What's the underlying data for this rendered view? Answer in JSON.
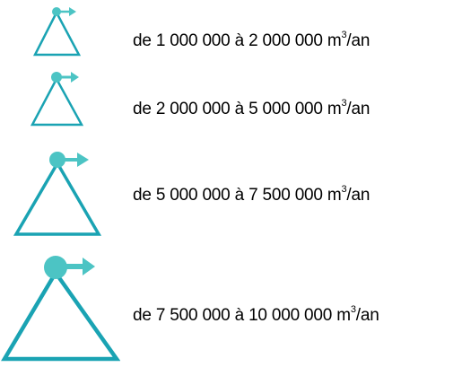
{
  "legend": {
    "icon": "triangle-with-flag-icon",
    "color": "#1aa3b3",
    "items": [
      {
        "prefix": "de 1 000 000 à 2 000 000 m",
        "exponent": "3",
        "suffix": "/an"
      },
      {
        "prefix": "de 2 000 000 à 5 000 000 m",
        "exponent": "3",
        "suffix": "/an"
      },
      {
        "prefix": "de 5 000 000 à 7 500 000 m",
        "exponent": "3",
        "suffix": "/an"
      },
      {
        "prefix": "de 7 500 000 à 10 000 000 m",
        "exponent": "3",
        "suffix": "/an"
      }
    ]
  }
}
